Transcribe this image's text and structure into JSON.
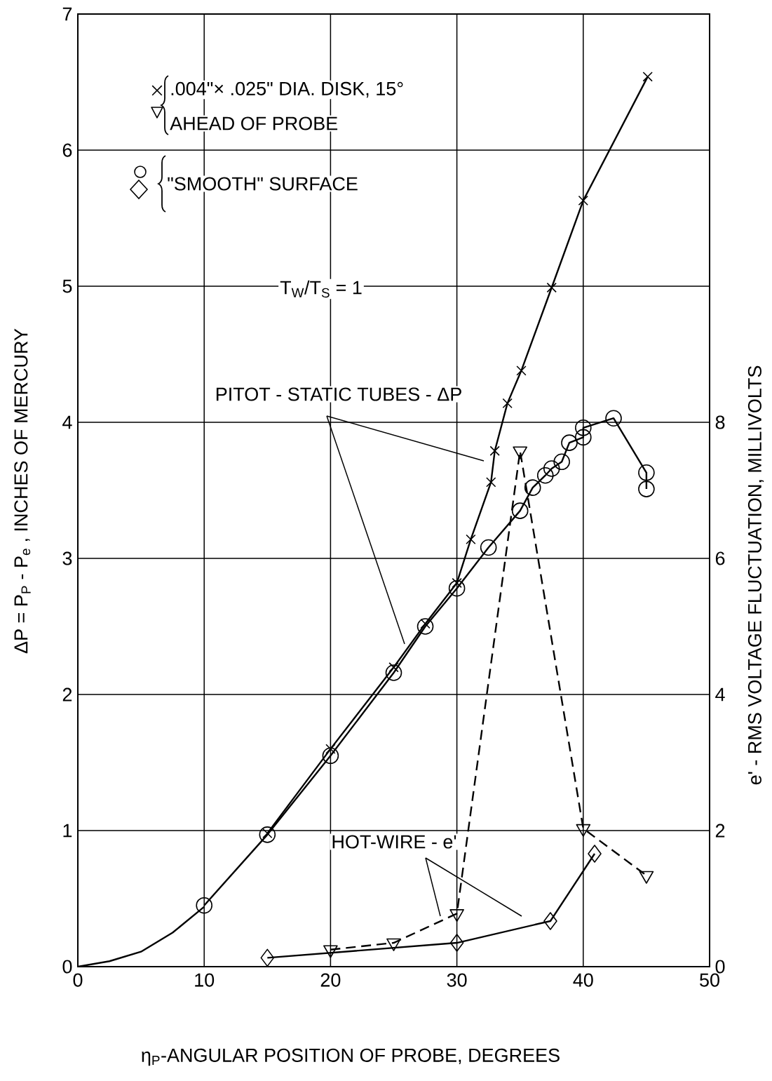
{
  "chart_data": {
    "type": "line",
    "xlabel": "η$_{P}$-ANGULAR POSITION OF PROBE, DEGREES",
    "ylabel": "ΔP = P$_{P}$ - P$_{e}$ , INCHES OF MERCURY",
    "y2label": "e' - RMS VOLTAGE FLUCTUATION, MILLIVOLTS",
    "annotations": [
      ".004\"× .025\" DIA. DISK, 15°",
      "AHEAD OF PROBE",
      "\"SMOOTH\" SURFACE",
      "T$_{W}$/T$_{S}$ = 1",
      "PITOT - STATIC TUBES - ΔP",
      "HOT-WIRE - e'"
    ],
    "xlim": [
      0,
      50
    ],
    "xticks": [
      0,
      10,
      20,
      30,
      40,
      50
    ],
    "ylim": [
      0,
      7
    ],
    "yticks": [
      0,
      1,
      2,
      3,
      4,
      5,
      6,
      7
    ],
    "y2lim": [
      0,
      14
    ],
    "y2ticks": [
      0,
      2,
      4,
      6,
      8
    ],
    "grid": true,
    "series": [
      {
        "color": "#000000",
        "marker": "none",
        "line_style": "solid",
        "x": [
          0,
          2.5,
          5,
          7.5,
          10
        ],
        "values": [
          0,
          0.04,
          0.11,
          0.25,
          0.44
        ]
      },
      {
        "color": "#000000",
        "marker": "cross",
        "line_style": "solid",
        "x": [
          15,
          20,
          25,
          27.5,
          30,
          31.1,
          32.7,
          33.0,
          34.0,
          35.1,
          37.5,
          40.0,
          45.1
        ],
        "values": [
          0.98,
          1.6,
          2.2,
          2.52,
          2.82,
          3.14,
          3.56,
          3.79,
          4.14,
          4.38,
          4.99,
          5.63,
          6.54
        ]
      },
      {
        "color": "#000000",
        "marker": "circle",
        "line_style": "solid",
        "x": [
          10,
          15,
          20,
          25,
          27.5,
          30,
          32.5,
          35,
          36,
          37,
          37.5,
          38.3,
          38.9,
          40,
          40,
          42.4,
          45,
          45
        ],
        "values": [
          0.45,
          0.97,
          1.55,
          2.16,
          2.5,
          2.78,
          3.08,
          3.35,
          3.52,
          3.61,
          3.66,
          3.71,
          3.85,
          3.89,
          3.96,
          4.03,
          3.63,
          3.51
        ]
      },
      {
        "color": "#000000",
        "marker": "triangle",
        "line_style": "dashed",
        "axis": "y2",
        "x": [
          20,
          25,
          30,
          35,
          40,
          45
        ],
        "values": [
          0.25,
          0.35,
          0.78,
          7.58,
          2.03,
          1.34
        ]
      },
      {
        "color": "#000000",
        "marker": "diamond",
        "line_style": "solid",
        "axis": "y2",
        "x": [
          15,
          30,
          37.4,
          40.9
        ],
        "values": [
          0.13,
          0.35,
          0.67,
          1.66
        ]
      }
    ]
  }
}
